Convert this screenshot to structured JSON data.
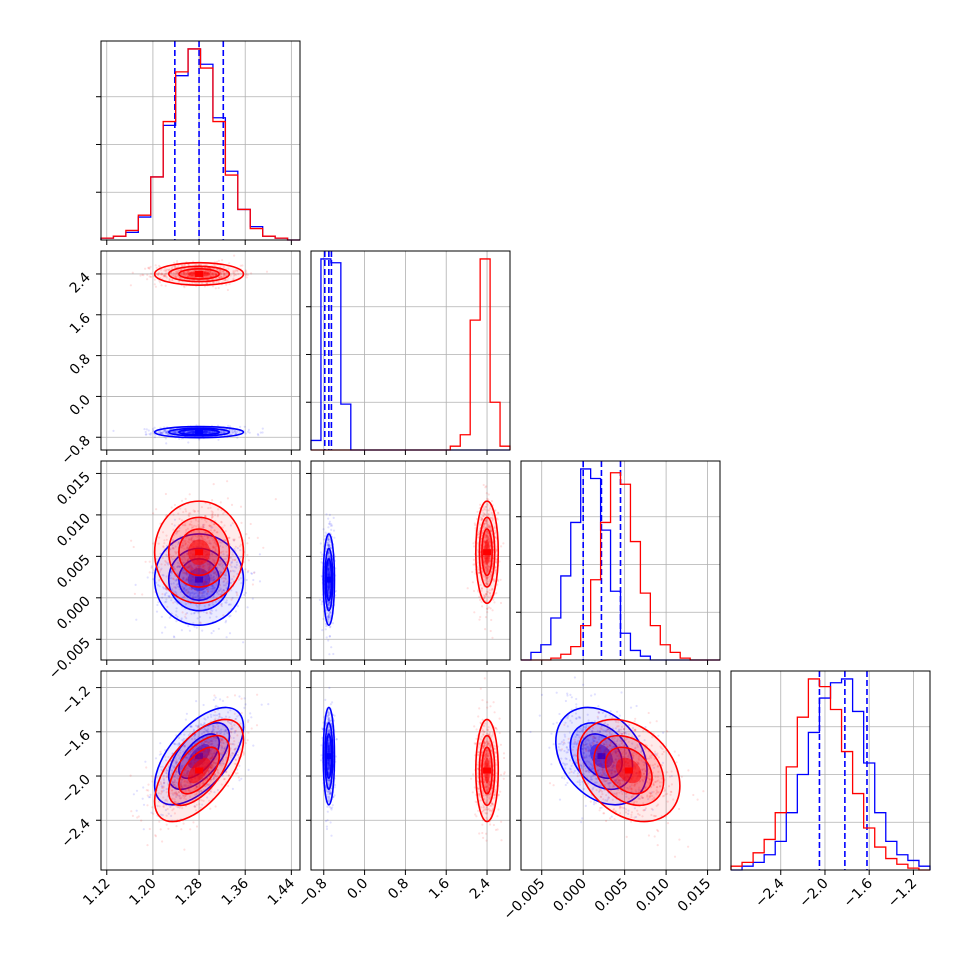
{
  "chart_data": {
    "type": "scatter",
    "subtype": "corner-plot",
    "colors": {
      "blue": "#0000ff",
      "red": "#ff0000",
      "grid": "#b0b0b0"
    },
    "parameters": [
      {
        "range": [
          1.11,
          1.455
        ],
        "ticks": [
          1.12,
          1.2,
          1.28,
          1.36,
          1.44
        ],
        "tick_labels": [
          "1.12",
          "1.20",
          "1.28",
          "1.36",
          "1.44"
        ]
      },
      {
        "range": [
          -1.05,
          2.85
        ],
        "ticks": [
          -0.8,
          0.0,
          0.8,
          1.6,
          2.4
        ],
        "tick_labels": [
          "−0.8",
          "0.0",
          "0.8",
          "1.6",
          "2.4"
        ]
      },
      {
        "range": [
          -0.0075,
          0.0165
        ],
        "ticks": [
          -0.005,
          0.0,
          0.005,
          0.01,
          0.015
        ],
        "tick_labels": [
          "−0.005",
          "0.000",
          "0.005",
          "0.010",
          "0.015"
        ]
      },
      {
        "range": [
          -2.85,
          -1.05
        ],
        "ticks": [
          -2.4,
          -2.0,
          -1.6,
          -1.2
        ],
        "tick_labels": [
          "−2.4",
          "−2.0",
          "−1.6",
          "−1.2"
        ]
      }
    ],
    "series": [
      {
        "color": "blue",
        "means": [
          1.28,
          -0.7,
          0.0022,
          -1.82
        ],
        "sds": [
          0.035,
          0.05,
          0.0025,
          0.2
        ],
        "rho": {
          "0-3": 0.6,
          "2-3": -0.3
        },
        "quantiles": [
          [
            1.238,
            1.28,
            1.322
          ],
          [
            -0.78,
            -0.7,
            -0.65
          ],
          [
            0.0,
            0.0022,
            0.0045
          ],
          [
            -2.05,
            -1.82,
            -1.62
          ]
        ],
        "hist": [
          [
            0.01,
            0.02,
            0.04,
            0.12,
            0.33,
            0.6,
            0.86,
            1.0,
            0.92,
            0.64,
            0.36,
            0.16,
            0.07,
            0.02,
            0.01,
            0.0
          ],
          [
            0.05,
            1.0,
            0.98,
            0.24,
            0,
            0,
            0,
            0,
            0,
            0,
            0,
            0,
            0,
            0,
            0,
            0,
            0,
            0,
            0,
            0
          ],
          [
            0.0,
            0.04,
            0.08,
            0.22,
            0.44,
            0.72,
            1.0,
            0.95,
            0.68,
            0.36,
            0.14,
            0.05,
            0.02,
            0.0,
            0.0,
            0.0,
            0.0,
            0.0,
            0.0,
            0.0
          ],
          [
            0.0,
            0.02,
            0.04,
            0.08,
            0.15,
            0.3,
            0.5,
            0.72,
            0.9,
            0.98,
            1.0,
            0.83,
            0.56,
            0.3,
            0.15,
            0.08,
            0.05,
            0.02
          ]
        ]
      },
      {
        "color": "red",
        "means": [
          1.28,
          2.4,
          0.0055,
          -1.95
        ],
        "sds": [
          0.035,
          0.1,
          0.0028,
          0.21
        ],
        "rho": {
          "0-3": 0.6,
          "2-3": -0.3
        },
        "quantiles": null,
        "hist": [
          [
            0.01,
            0.02,
            0.05,
            0.13,
            0.33,
            0.62,
            0.88,
            1.0,
            0.9,
            0.62,
            0.34,
            0.16,
            0.06,
            0.02,
            0.01,
            0.0
          ],
          [
            0,
            0,
            0,
            0,
            0,
            0,
            0,
            0,
            0,
            0,
            0,
            0,
            0,
            0,
            0.02,
            0.08,
            0.68,
            1.0,
            0.25,
            0.02
          ],
          [
            0.0,
            0.0,
            0.0,
            0.01,
            0.03,
            0.07,
            0.18,
            0.42,
            0.72,
            0.98,
            0.92,
            0.62,
            0.35,
            0.18,
            0.08,
            0.04,
            0.01,
            0.0,
            0.0,
            0.0
          ],
          [
            0.02,
            0.04,
            0.09,
            0.16,
            0.3,
            0.54,
            0.8,
            1.0,
            0.96,
            0.84,
            0.62,
            0.4,
            0.22,
            0.12,
            0.06,
            0.03,
            0.01,
            0.0
          ]
        ]
      }
    ]
  }
}
